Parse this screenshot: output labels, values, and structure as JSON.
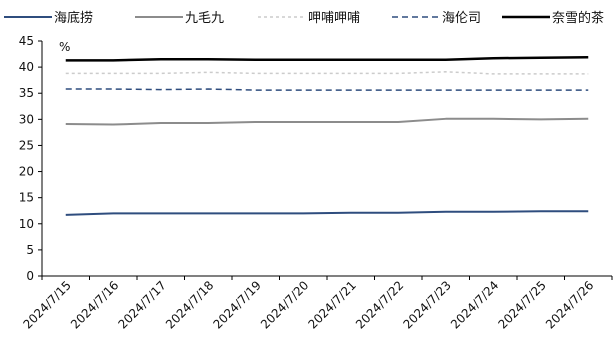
{
  "chart_data": {
    "type": "line",
    "unit": "%",
    "categories": [
      "2024/7/15",
      "2024/7/16",
      "2024/7/17",
      "2024/7/18",
      "2024/7/19",
      "2024/7/20",
      "2024/7/21",
      "2024/7/22",
      "2024/7/23",
      "2024/7/24",
      "2024/7/25",
      "2024/7/26"
    ],
    "ylim": [
      0,
      45
    ],
    "yticks": [
      0,
      5,
      10,
      15,
      20,
      25,
      30,
      35,
      40,
      45
    ],
    "grid": false,
    "legend_position": "top",
    "series": [
      {
        "name": "海底捞",
        "color": "#2f4d7e",
        "dash": "solid",
        "width": 2,
        "values": [
          11.7,
          12.0,
          12.0,
          12.0,
          12.0,
          12.0,
          12.1,
          12.1,
          12.3,
          12.3,
          12.4,
          12.4
        ]
      },
      {
        "name": "九毛九",
        "color": "#8c8c8c",
        "dash": "solid",
        "width": 2,
        "values": [
          29.1,
          29.0,
          29.3,
          29.3,
          29.5,
          29.5,
          29.5,
          29.5,
          30.1,
          30.1,
          30.0,
          30.1
        ]
      },
      {
        "name": "呷哺呷哺",
        "color": "#cccccc",
        "dash": "dotted",
        "width": 1.5,
        "values": [
          38.8,
          38.8,
          38.8,
          39.0,
          38.8,
          38.8,
          38.8,
          38.8,
          39.1,
          38.7,
          38.7,
          38.7
        ]
      },
      {
        "name": "海伦司",
        "color": "#2f4d7e",
        "dash": "dashed",
        "width": 1.5,
        "values": [
          35.8,
          35.8,
          35.7,
          35.8,
          35.6,
          35.6,
          35.6,
          35.6,
          35.6,
          35.6,
          35.6,
          35.6
        ]
      },
      {
        "name": "奈雪的茶",
        "color": "#000000",
        "dash": "solid",
        "width": 2.5,
        "values": [
          41.3,
          41.3,
          41.5,
          41.5,
          41.4,
          41.4,
          41.4,
          41.4,
          41.4,
          41.7,
          41.8,
          41.9
        ]
      }
    ]
  }
}
